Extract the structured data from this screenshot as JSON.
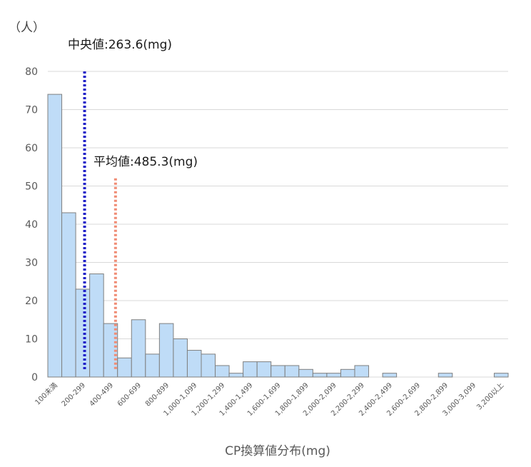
{
  "chart_data": {
    "type": "bar",
    "title": "",
    "xlabel": "CP換算値分布(mg)",
    "ylabel": "（人）",
    "ylim": [
      0,
      80
    ],
    "yticks": [
      0,
      10,
      20,
      30,
      40,
      50,
      60,
      70,
      80
    ],
    "grid": true,
    "bar_color": "#bfdcf7",
    "bar_edge_color": "#7f7f7f",
    "categories": [
      "100未満",
      "100-199",
      "200-299",
      "300-399",
      "400-499",
      "500-599",
      "600-699",
      "700-799",
      "800-899",
      "900-999",
      "1,000-1,099",
      "1,100-1,199",
      "1,200-1,299",
      "1,300-1,399",
      "1,400-1,499",
      "1,500-1,599",
      "1,600-1,699",
      "1,700-1,799",
      "1,800-1,899",
      "1,900-1,999",
      "2,000-2,099",
      "2,100-2,199",
      "2,200-2,299",
      "2,300-2,399",
      "2,400-2,499",
      "2,500-2,599",
      "2,600-2,699",
      "2,700-2,799",
      "2,800-2,899",
      "2,900-2,999",
      "3,000-3,099",
      "3,100-3,199",
      "3,200以上"
    ],
    "visible_tick_labels": [
      "100未満",
      "200-299",
      "400-499",
      "600-699",
      "800-899",
      "1,000-1,099",
      "1,200-1,299",
      "1,400-1,499",
      "1,600-1,699",
      "1,800-1,899",
      "2,000-2,099",
      "2,200-2,299",
      "2,400-2,499",
      "2,600-2,699",
      "2,800-2,899",
      "3,000-3,099",
      "3,200以上"
    ],
    "values": [
      74,
      43,
      23,
      27,
      14,
      5,
      15,
      6,
      14,
      10,
      7,
      6,
      3,
      1,
      4,
      4,
      3,
      3,
      2,
      1,
      1,
      2,
      3,
      0,
      1,
      0,
      0,
      0,
      1,
      0,
      0,
      0,
      1
    ],
    "reference_lines": [
      {
        "label": "中央値:263.6(mg)",
        "value": 263.6,
        "color": "#1f1fc8",
        "y_top": 80
      },
      {
        "label": "平均値:485.3(mg)",
        "value": 485.3,
        "color": "#f08c74",
        "y_top": 52
      }
    ]
  }
}
